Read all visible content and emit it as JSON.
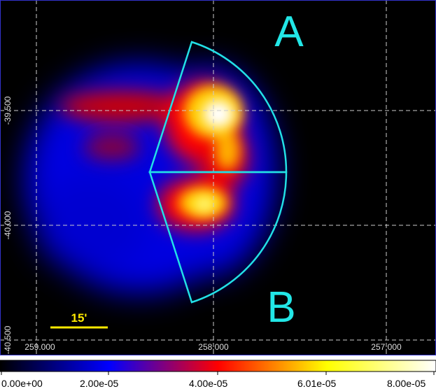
{
  "image": {
    "region_labels": {
      "a": "A",
      "b": "B"
    },
    "scale_bar_label": "15'",
    "dec_labels": [
      "-39.500",
      "-40.000",
      "-40.500"
    ],
    "ra_labels": [
      "259.000",
      "258.000",
      "257.000"
    ],
    "colors": {
      "background": "#000000",
      "region_outline": "#22e0e6",
      "region_label": "#22e6e6",
      "scale_bar": "#ffea00",
      "grid": "#cccccc",
      "frame": "#3333cc"
    }
  },
  "colorbar": {
    "tick_labels": [
      "0.00e+00",
      "2.00e-05",
      "4.00e-05",
      "6.01e-05",
      "8.00e-05"
    ],
    "colormap": [
      "#000000",
      "#0000ff",
      "#ff0000",
      "#ffff00",
      "#ffffff"
    ]
  }
}
